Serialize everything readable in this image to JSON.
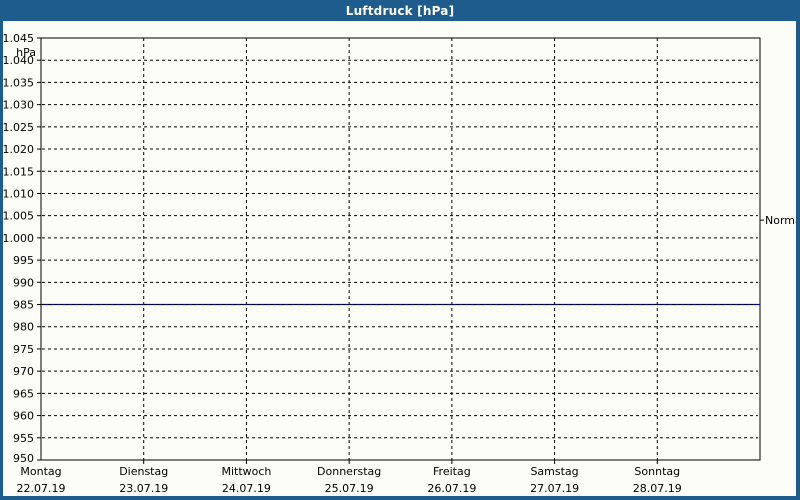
{
  "window": {
    "title": "Luftdruck [hPa]"
  },
  "theme": {
    "titlebar_color": "#1d5c8c",
    "frame_color": "#1d5c8c",
    "body_background": "#fdfdf8",
    "grid_color": "#000000",
    "series_line_color": "#0000cc"
  },
  "chart_data": {
    "type": "line",
    "title": "Luftdruck [hPa]",
    "unit_label": "hPa",
    "ylim": [
      950,
      1045
    ],
    "ytick_step": 5,
    "grid": "dashed",
    "legend_position": "none",
    "yticks": [
      {
        "value": 1045,
        "label": "1.045"
      },
      {
        "value": 1040,
        "label": "1.040"
      },
      {
        "value": 1035,
        "label": "1.035"
      },
      {
        "value": 1030,
        "label": "1.030"
      },
      {
        "value": 1025,
        "label": "1.025"
      },
      {
        "value": 1020,
        "label": "1.020"
      },
      {
        "value": 1015,
        "label": "1.015"
      },
      {
        "value": 1010,
        "label": "1.010"
      },
      {
        "value": 1005,
        "label": "1.005"
      },
      {
        "value": 1000,
        "label": "1.000"
      },
      {
        "value": 995,
        "label": "995"
      },
      {
        "value": 990,
        "label": "990"
      },
      {
        "value": 985,
        "label": "985"
      },
      {
        "value": 980,
        "label": "980"
      },
      {
        "value": 975,
        "label": "975"
      },
      {
        "value": 970,
        "label": "970"
      },
      {
        "value": 965,
        "label": "965"
      },
      {
        "value": 960,
        "label": "960"
      },
      {
        "value": 955,
        "label": "955"
      },
      {
        "value": 950,
        "label": "950"
      }
    ],
    "x_categories": [
      {
        "weekday": "Montag",
        "date": "22.07.19"
      },
      {
        "weekday": "Dienstag",
        "date": "23.07.19"
      },
      {
        "weekday": "Mittwoch",
        "date": "24.07.19"
      },
      {
        "weekday": "Donnerstag",
        "date": "25.07.19"
      },
      {
        "weekday": "Freitag",
        "date": "26.07.19"
      },
      {
        "weekday": "Samstag",
        "date": "27.07.19"
      },
      {
        "weekday": "Sonntag",
        "date": "28.07.19"
      }
    ],
    "series": [
      {
        "name": "Luftdruck",
        "color": "#0000cc",
        "values": [
          985,
          985,
          985,
          985,
          985,
          985,
          985,
          985
        ]
      }
    ],
    "normal_marker": {
      "label": "Normal",
      "value": 1004
    }
  }
}
